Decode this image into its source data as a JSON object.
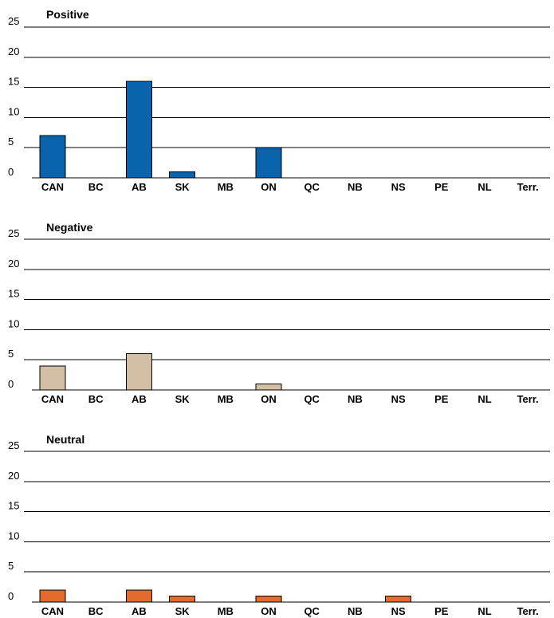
{
  "chart_data": [
    {
      "type": "bar",
      "title": "Positive",
      "categories": [
        "CAN",
        "BC",
        "AB",
        "SK",
        "MB",
        "ON",
        "QC",
        "NB",
        "NS",
        "PE",
        "NL",
        "Terr."
      ],
      "values": [
        7,
        0,
        16,
        1,
        0,
        5,
        0,
        0,
        0,
        0,
        0,
        0
      ],
      "ylim": [
        0,
        25
      ],
      "yticks": [
        "0",
        "5",
        "10",
        "15",
        "20",
        "25"
      ],
      "grid": true,
      "color": "#0a64ad"
    },
    {
      "type": "bar",
      "title": "Negative",
      "categories": [
        "CAN",
        "BC",
        "AB",
        "SK",
        "MB",
        "ON",
        "QC",
        "NB",
        "NS",
        "PE",
        "NL",
        "Terr."
      ],
      "values": [
        4,
        0,
        6,
        0,
        0,
        1,
        0,
        0,
        0,
        0,
        0,
        0
      ],
      "ylim": [
        0,
        25
      ],
      "yticks": [
        "0",
        "5",
        "10",
        "15",
        "20",
        "25"
      ],
      "grid": true,
      "color": "#d3bfa3"
    },
    {
      "type": "bar",
      "title": "Neutral",
      "categories": [
        "CAN",
        "BC",
        "AB",
        "SK",
        "MB",
        "ON",
        "QC",
        "NB",
        "NS",
        "PE",
        "NL",
        "Terr."
      ],
      "values": [
        2,
        0,
        2,
        1,
        0,
        1,
        0,
        0,
        1,
        0,
        0,
        0
      ],
      "ylim": [
        0,
        25
      ],
      "yticks": [
        "0",
        "5",
        "10",
        "15",
        "20",
        "25"
      ],
      "grid": true,
      "color": "#e26b2d"
    }
  ]
}
